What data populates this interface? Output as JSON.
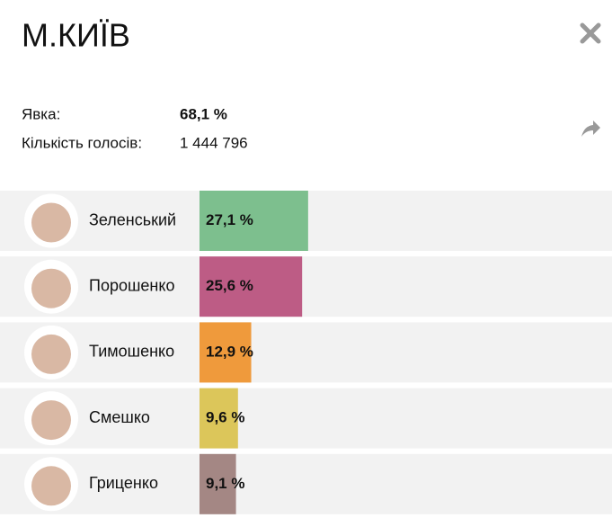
{
  "header": {
    "title": "М.КИЇВ"
  },
  "stats": {
    "turnout_label": "Явка:",
    "turnout_value": "68,1 %",
    "votes_label": "Кількість голосів:",
    "votes_value": "1 444 796"
  },
  "chart_data": {
    "type": "bar",
    "categories": [
      "Зеленський",
      "Порошенко",
      "Тимошенко",
      "Смешко",
      "Гриценко"
    ],
    "values": [
      27.1,
      25.6,
      12.9,
      9.6,
      9.1
    ],
    "value_labels": [
      "27,1 %",
      "25,6 %",
      "12,9 %",
      "9,6 %",
      "9,1 %"
    ],
    "colors": [
      "#7dbf8e",
      "#bd5c85",
      "#ef9a3c",
      "#dcc65a",
      "#a48784"
    ]
  }
}
